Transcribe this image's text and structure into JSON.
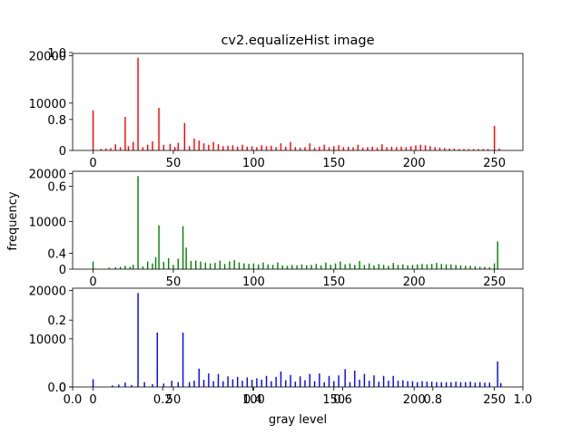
{
  "chart_data": {
    "type": "bar",
    "title": "cv2.equalizeHist image",
    "xlabel": "gray level",
    "ylabel": "frequency",
    "panels": [
      {
        "name": "red",
        "color": "#ff0000",
        "xlim": [
          -12.75,
          267.75
        ],
        "ylim": [
          0,
          20500
        ],
        "xticks": [
          0,
          50,
          100,
          150,
          200,
          250
        ],
        "yticks": [
          0,
          10000,
          20000
        ],
        "bars": [
          {
            "x": 0,
            "y": 8500
          },
          {
            "x": 5,
            "y": 300
          },
          {
            "x": 8,
            "y": 400
          },
          {
            "x": 11,
            "y": 500
          },
          {
            "x": 14,
            "y": 1300
          },
          {
            "x": 17,
            "y": 700
          },
          {
            "x": 20,
            "y": 7100
          },
          {
            "x": 22,
            "y": 900
          },
          {
            "x": 25,
            "y": 1800
          },
          {
            "x": 28,
            "y": 19600
          },
          {
            "x": 31,
            "y": 700
          },
          {
            "x": 34,
            "y": 1200
          },
          {
            "x": 37,
            "y": 1900
          },
          {
            "x": 41,
            "y": 9000
          },
          {
            "x": 44,
            "y": 1200
          },
          {
            "x": 48,
            "y": 1400
          },
          {
            "x": 51,
            "y": 700
          },
          {
            "x": 53,
            "y": 1600
          },
          {
            "x": 57,
            "y": 5800
          },
          {
            "x": 60,
            "y": 900
          },
          {
            "x": 63,
            "y": 2500
          },
          {
            "x": 66,
            "y": 2100
          },
          {
            "x": 69,
            "y": 1500
          },
          {
            "x": 72,
            "y": 1200
          },
          {
            "x": 75,
            "y": 1800
          },
          {
            "x": 78,
            "y": 1300
          },
          {
            "x": 81,
            "y": 900
          },
          {
            "x": 84,
            "y": 1000
          },
          {
            "x": 87,
            "y": 1100
          },
          {
            "x": 90,
            "y": 800
          },
          {
            "x": 93,
            "y": 1200
          },
          {
            "x": 96,
            "y": 800
          },
          {
            "x": 99,
            "y": 900
          },
          {
            "x": 102,
            "y": 700
          },
          {
            "x": 105,
            "y": 1100
          },
          {
            "x": 108,
            "y": 900
          },
          {
            "x": 111,
            "y": 1000
          },
          {
            "x": 114,
            "y": 700
          },
          {
            "x": 117,
            "y": 1500
          },
          {
            "x": 120,
            "y": 800
          },
          {
            "x": 123,
            "y": 1800
          },
          {
            "x": 126,
            "y": 700
          },
          {
            "x": 129,
            "y": 600
          },
          {
            "x": 132,
            "y": 700
          },
          {
            "x": 135,
            "y": 1500
          },
          {
            "x": 138,
            "y": 600
          },
          {
            "x": 141,
            "y": 800
          },
          {
            "x": 144,
            "y": 1200
          },
          {
            "x": 147,
            "y": 700
          },
          {
            "x": 150,
            "y": 900
          },
          {
            "x": 153,
            "y": 1100
          },
          {
            "x": 156,
            "y": 700
          },
          {
            "x": 159,
            "y": 800
          },
          {
            "x": 162,
            "y": 700
          },
          {
            "x": 165,
            "y": 1200
          },
          {
            "x": 168,
            "y": 600
          },
          {
            "x": 171,
            "y": 700
          },
          {
            "x": 174,
            "y": 800
          },
          {
            "x": 177,
            "y": 600
          },
          {
            "x": 180,
            "y": 1300
          },
          {
            "x": 183,
            "y": 700
          },
          {
            "x": 186,
            "y": 800
          },
          {
            "x": 189,
            "y": 700
          },
          {
            "x": 192,
            "y": 800
          },
          {
            "x": 195,
            "y": 700
          },
          {
            "x": 198,
            "y": 900
          },
          {
            "x": 201,
            "y": 1100
          },
          {
            "x": 204,
            "y": 1200
          },
          {
            "x": 207,
            "y": 1100
          },
          {
            "x": 210,
            "y": 900
          },
          {
            "x": 213,
            "y": 700
          },
          {
            "x": 216,
            "y": 600
          },
          {
            "x": 219,
            "y": 500
          },
          {
            "x": 222,
            "y": 400
          },
          {
            "x": 225,
            "y": 400
          },
          {
            "x": 228,
            "y": 300
          },
          {
            "x": 231,
            "y": 300
          },
          {
            "x": 234,
            "y": 300
          },
          {
            "x": 237,
            "y": 300
          },
          {
            "x": 240,
            "y": 300
          },
          {
            "x": 243,
            "y": 300
          },
          {
            "x": 246,
            "y": 300
          },
          {
            "x": 250,
            "y": 5200
          },
          {
            "x": 253,
            "y": 400
          }
        ]
      },
      {
        "name": "green",
        "color": "#008000",
        "xlim": [
          -12.75,
          267.75
        ],
        "ylim": [
          0,
          20500
        ],
        "xticks": [
          0,
          50,
          100,
          150,
          200,
          250
        ],
        "yticks": [
          0,
          10000,
          20000
        ],
        "bars": [
          {
            "x": 0,
            "y": 1600
          },
          {
            "x": 10,
            "y": 300
          },
          {
            "x": 14,
            "y": 400
          },
          {
            "x": 17,
            "y": 500
          },
          {
            "x": 20,
            "y": 700
          },
          {
            "x": 23,
            "y": 500
          },
          {
            "x": 25,
            "y": 900
          },
          {
            "x": 28,
            "y": 19500
          },
          {
            "x": 31,
            "y": 600
          },
          {
            "x": 34,
            "y": 1600
          },
          {
            "x": 37,
            "y": 1200
          },
          {
            "x": 39,
            "y": 2500
          },
          {
            "x": 41,
            "y": 9200
          },
          {
            "x": 44,
            "y": 1500
          },
          {
            "x": 47,
            "y": 2300
          },
          {
            "x": 50,
            "y": 900
          },
          {
            "x": 53,
            "y": 2200
          },
          {
            "x": 56,
            "y": 9000
          },
          {
            "x": 58,
            "y": 4500
          },
          {
            "x": 61,
            "y": 1700
          },
          {
            "x": 64,
            "y": 1800
          },
          {
            "x": 67,
            "y": 1600
          },
          {
            "x": 70,
            "y": 1400
          },
          {
            "x": 73,
            "y": 1200
          },
          {
            "x": 76,
            "y": 1300
          },
          {
            "x": 79,
            "y": 1800
          },
          {
            "x": 82,
            "y": 1100
          },
          {
            "x": 85,
            "y": 1600
          },
          {
            "x": 88,
            "y": 1900
          },
          {
            "x": 91,
            "y": 1400
          },
          {
            "x": 94,
            "y": 1200
          },
          {
            "x": 97,
            "y": 1100
          },
          {
            "x": 100,
            "y": 1200
          },
          {
            "x": 103,
            "y": 1000
          },
          {
            "x": 106,
            "y": 1400
          },
          {
            "x": 109,
            "y": 1000
          },
          {
            "x": 112,
            "y": 900
          },
          {
            "x": 115,
            "y": 1400
          },
          {
            "x": 118,
            "y": 800
          },
          {
            "x": 121,
            "y": 700
          },
          {
            "x": 124,
            "y": 900
          },
          {
            "x": 127,
            "y": 800
          },
          {
            "x": 130,
            "y": 1000
          },
          {
            "x": 133,
            "y": 800
          },
          {
            "x": 136,
            "y": 900
          },
          {
            "x": 139,
            "y": 1100
          },
          {
            "x": 142,
            "y": 800
          },
          {
            "x": 145,
            "y": 1400
          },
          {
            "x": 148,
            "y": 900
          },
          {
            "x": 151,
            "y": 1200
          },
          {
            "x": 154,
            "y": 1600
          },
          {
            "x": 157,
            "y": 1000
          },
          {
            "x": 160,
            "y": 1200
          },
          {
            "x": 163,
            "y": 900
          },
          {
            "x": 166,
            "y": 1700
          },
          {
            "x": 169,
            "y": 900
          },
          {
            "x": 172,
            "y": 1200
          },
          {
            "x": 175,
            "y": 800
          },
          {
            "x": 178,
            "y": 1100
          },
          {
            "x": 181,
            "y": 900
          },
          {
            "x": 184,
            "y": 700
          },
          {
            "x": 187,
            "y": 1300
          },
          {
            "x": 190,
            "y": 900
          },
          {
            "x": 193,
            "y": 1000
          },
          {
            "x": 196,
            "y": 800
          },
          {
            "x": 199,
            "y": 900
          },
          {
            "x": 202,
            "y": 1000
          },
          {
            "x": 205,
            "y": 1100
          },
          {
            "x": 208,
            "y": 1000
          },
          {
            "x": 211,
            "y": 1100
          },
          {
            "x": 214,
            "y": 1300
          },
          {
            "x": 217,
            "y": 1100
          },
          {
            "x": 220,
            "y": 1000
          },
          {
            "x": 223,
            "y": 1000
          },
          {
            "x": 226,
            "y": 900
          },
          {
            "x": 229,
            "y": 800
          },
          {
            "x": 232,
            "y": 700
          },
          {
            "x": 235,
            "y": 700
          },
          {
            "x": 238,
            "y": 600
          },
          {
            "x": 241,
            "y": 500
          },
          {
            "x": 244,
            "y": 500
          },
          {
            "x": 247,
            "y": 400
          },
          {
            "x": 250,
            "y": 1200
          },
          {
            "x": 252,
            "y": 5800
          }
        ]
      },
      {
        "name": "blue",
        "color": "#0000ff",
        "xlim": [
          -12.75,
          267.75
        ],
        "ylim": [
          0,
          20500
        ],
        "xticks": [
          0,
          50,
          100,
          150,
          200,
          250
        ],
        "yticks": [
          0,
          10000,
          20000
        ],
        "bars": [
          {
            "x": 0,
            "y": 1600
          },
          {
            "x": 12,
            "y": 300
          },
          {
            "x": 16,
            "y": 500
          },
          {
            "x": 20,
            "y": 900
          },
          {
            "x": 24,
            "y": 400
          },
          {
            "x": 28,
            "y": 19500
          },
          {
            "x": 32,
            "y": 1000
          },
          {
            "x": 37,
            "y": 600
          },
          {
            "x": 40,
            "y": 11300
          },
          {
            "x": 44,
            "y": 700
          },
          {
            "x": 49,
            "y": 1300
          },
          {
            "x": 53,
            "y": 1000
          },
          {
            "x": 56,
            "y": 11300
          },
          {
            "x": 60,
            "y": 1000
          },
          {
            "x": 63,
            "y": 1300
          },
          {
            "x": 66,
            "y": 3800
          },
          {
            "x": 69,
            "y": 1500
          },
          {
            "x": 72,
            "y": 2800
          },
          {
            "x": 75,
            "y": 1200
          },
          {
            "x": 78,
            "y": 2700
          },
          {
            "x": 81,
            "y": 1200
          },
          {
            "x": 84,
            "y": 2200
          },
          {
            "x": 87,
            "y": 1600
          },
          {
            "x": 90,
            "y": 2100
          },
          {
            "x": 93,
            "y": 1300
          },
          {
            "x": 96,
            "y": 2000
          },
          {
            "x": 99,
            "y": 1500
          },
          {
            "x": 102,
            "y": 1800
          },
          {
            "x": 105,
            "y": 1500
          },
          {
            "x": 108,
            "y": 2300
          },
          {
            "x": 111,
            "y": 1200
          },
          {
            "x": 114,
            "y": 2100
          },
          {
            "x": 117,
            "y": 3200
          },
          {
            "x": 120,
            "y": 1400
          },
          {
            "x": 123,
            "y": 2500
          },
          {
            "x": 126,
            "y": 1100
          },
          {
            "x": 129,
            "y": 2200
          },
          {
            "x": 132,
            "y": 1400
          },
          {
            "x": 135,
            "y": 2700
          },
          {
            "x": 138,
            "y": 1200
          },
          {
            "x": 141,
            "y": 2800
          },
          {
            "x": 144,
            "y": 1000
          },
          {
            "x": 147,
            "y": 2300
          },
          {
            "x": 150,
            "y": 1200
          },
          {
            "x": 153,
            "y": 2400
          },
          {
            "x": 157,
            "y": 3700
          },
          {
            "x": 160,
            "y": 1000
          },
          {
            "x": 163,
            "y": 3400
          },
          {
            "x": 166,
            "y": 1500
          },
          {
            "x": 169,
            "y": 2700
          },
          {
            "x": 172,
            "y": 1300
          },
          {
            "x": 175,
            "y": 2400
          },
          {
            "x": 178,
            "y": 1100
          },
          {
            "x": 181,
            "y": 2300
          },
          {
            "x": 184,
            "y": 1300
          },
          {
            "x": 187,
            "y": 2300
          },
          {
            "x": 190,
            "y": 1300
          },
          {
            "x": 193,
            "y": 1400
          },
          {
            "x": 196,
            "y": 1200
          },
          {
            "x": 199,
            "y": 1200
          },
          {
            "x": 202,
            "y": 1000
          },
          {
            "x": 205,
            "y": 1200
          },
          {
            "x": 208,
            "y": 1100
          },
          {
            "x": 211,
            "y": 1100
          },
          {
            "x": 214,
            "y": 1000
          },
          {
            "x": 217,
            "y": 1000
          },
          {
            "x": 220,
            "y": 1000
          },
          {
            "x": 223,
            "y": 1000
          },
          {
            "x": 226,
            "y": 1100
          },
          {
            "x": 229,
            "y": 1000
          },
          {
            "x": 232,
            "y": 1000
          },
          {
            "x": 235,
            "y": 1100
          },
          {
            "x": 238,
            "y": 900
          },
          {
            "x": 241,
            "y": 1000
          },
          {
            "x": 244,
            "y": 900
          },
          {
            "x": 247,
            "y": 900
          },
          {
            "x": 252,
            "y": 5300
          },
          {
            "x": 254,
            "y": 800
          }
        ]
      }
    ],
    "background_axes": {
      "xlim": [
        0,
        1
      ],
      "ylim": [
        0,
        1
      ],
      "xticks": [
        "0.0",
        "0.2",
        "0.4",
        "0.6",
        "0.8",
        "1.0"
      ],
      "yticks": [
        "0.0",
        "0.2",
        "0.4",
        "0.6",
        "0.8",
        "1.0"
      ]
    }
  }
}
